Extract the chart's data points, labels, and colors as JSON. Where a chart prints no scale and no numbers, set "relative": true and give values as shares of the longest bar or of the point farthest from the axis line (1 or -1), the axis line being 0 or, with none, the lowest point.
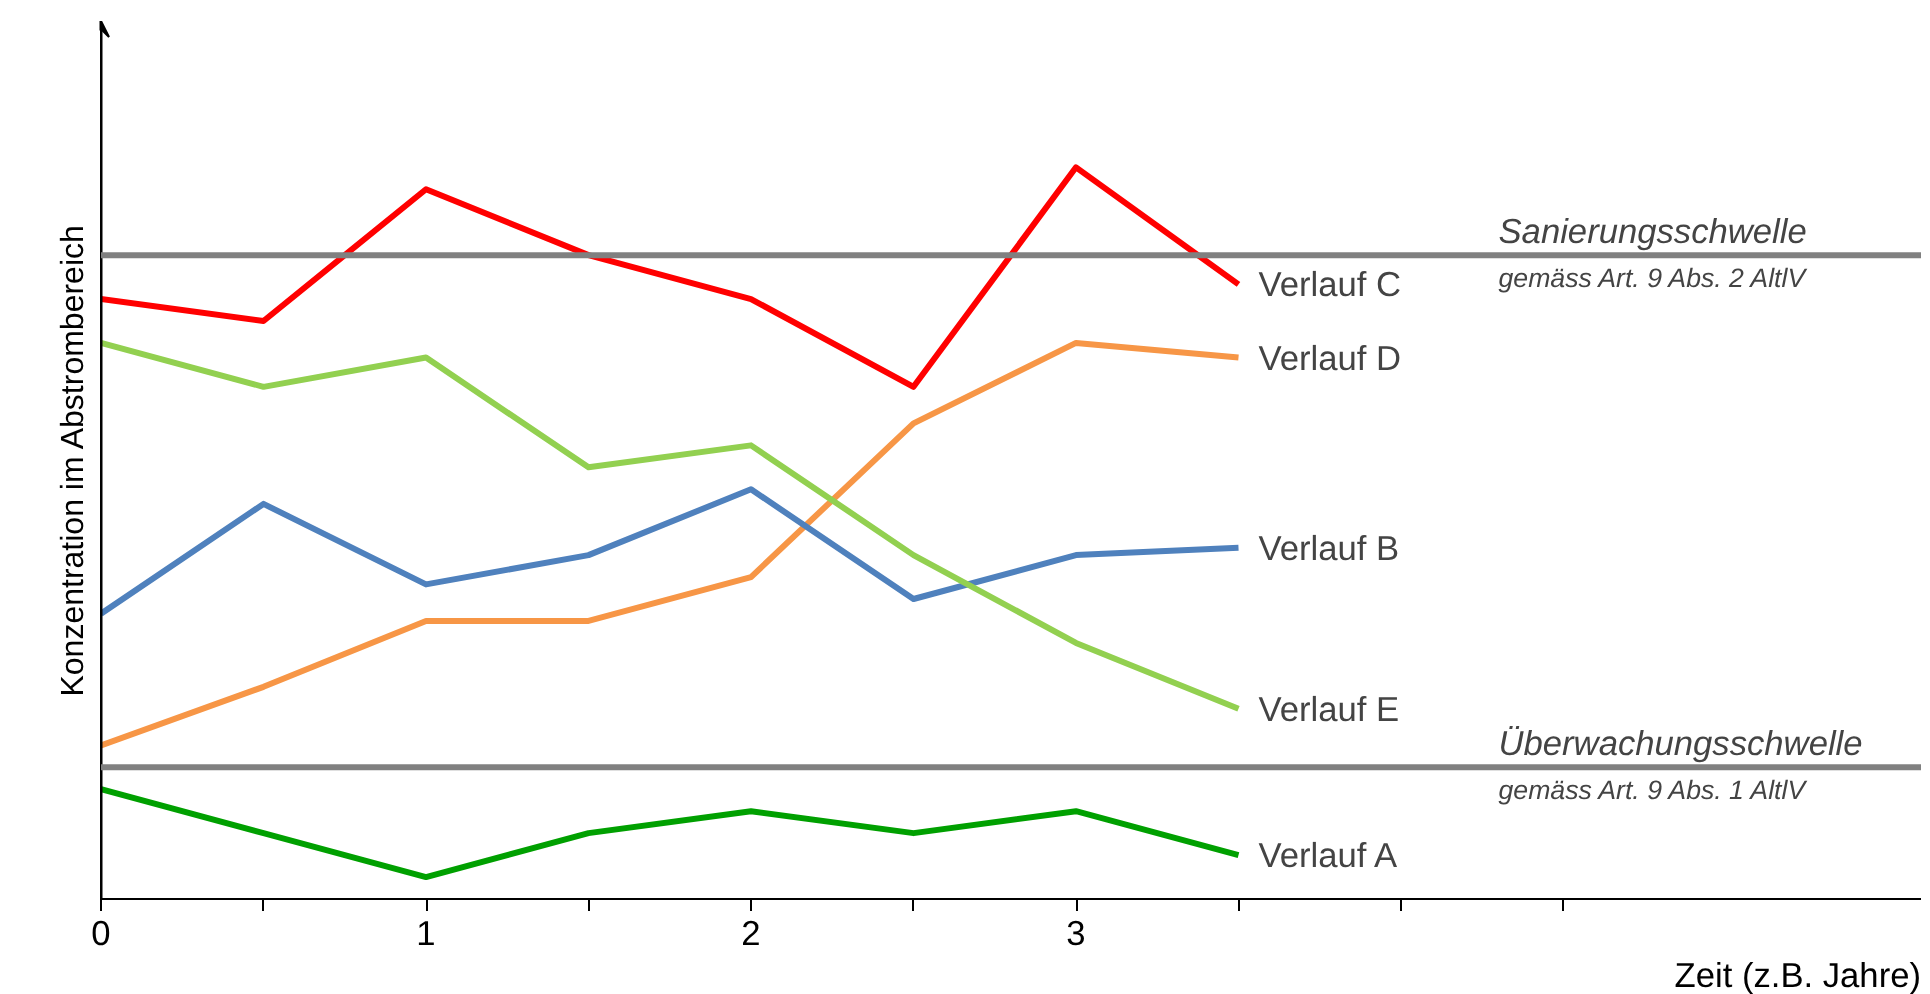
{
  "chart_data": {
    "type": "line",
    "relative": true,
    "xlabel": "Zeit (z.B. Jahre)",
    "ylabel": "Konzentration im Abstrombereich",
    "x": [
      0,
      0.5,
      1,
      1.5,
      2,
      2.5,
      3,
      3.5
    ],
    "xlim": [
      0,
      5.6
    ],
    "xticks": [
      0,
      {
        "value": 0.5,
        "label": null
      },
      1,
      {
        "value": 1.5,
        "label": null
      },
      2,
      {
        "value": 2.5,
        "label": null
      },
      3,
      {
        "value": 3.5,
        "label": null
      },
      {
        "value": 4,
        "label": null
      },
      {
        "value": 4.5,
        "label": null
      }
    ],
    "grid": false,
    "legend": false,
    "marker": "none",
    "line_style": "solid",
    "series": [
      {
        "name": "Verlauf C",
        "color": "#ff0000",
        "values": [
          0.82,
          0.79,
          0.97,
          0.88,
          0.82,
          0.7,
          1,
          0.84
        ]
      },
      {
        "name": "Verlauf D",
        "color": "#f79646",
        "values": [
          0.21,
          0.29,
          0.38,
          0.38,
          0.44,
          0.65,
          0.76,
          0.74
        ]
      },
      {
        "name": "Verlauf B",
        "color": "#4f81bd",
        "values": [
          0.39,
          0.54,
          0.43,
          0.47,
          0.56,
          0.41,
          0.47,
          0.48
        ]
      },
      {
        "name": "Verlauf E",
        "color": "#92d050",
        "values": [
          0.76,
          0.7,
          0.74,
          0.59,
          0.62,
          0.47,
          0.35,
          0.26
        ]
      },
      {
        "name": "Verlauf  A",
        "color": "#00a000",
        "values": [
          0.15,
          0.09,
          0.03,
          0.09,
          0.12,
          0.09,
          0.12,
          0.06
        ]
      }
    ],
    "ref_lines": [
      {
        "axis": "y",
        "value": 0.88,
        "label": "Sanierungsschwelle\ngemäss Art. 9 Abs. 2 AltlV",
        "color": "#808080"
      },
      {
        "axis": "y",
        "value": 0.18,
        "label": "Überwachungsschwelle\ngemäss Art. 9 Abs. 1 AltlV",
        "color": "#808080"
      }
    ]
  }
}
